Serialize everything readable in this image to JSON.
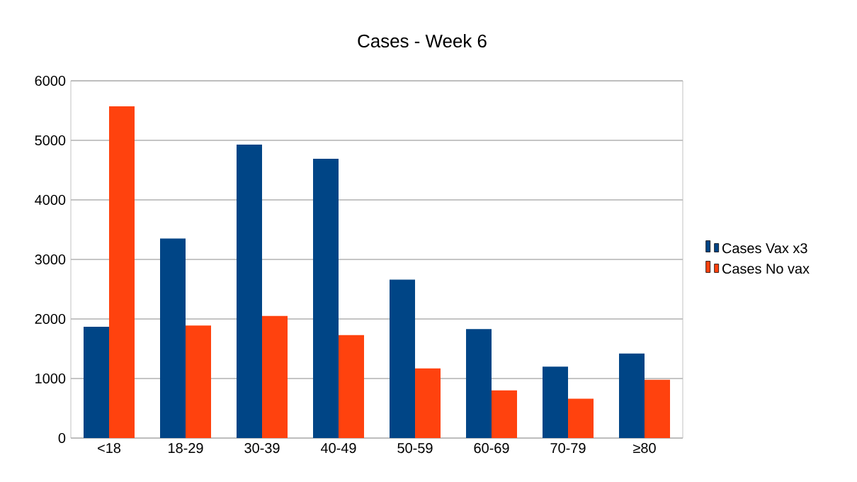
{
  "chart_data": {
    "type": "bar",
    "title": "Cases - Week 6",
    "categories": [
      "<18",
      "18-29",
      "30-39",
      "40-49",
      "50-59",
      "60-69",
      "70-79",
      "≥80"
    ],
    "series": [
      {
        "name": "Cases Vax x3",
        "color": "#004586",
        "values": [
          1870,
          3350,
          4930,
          4690,
          2660,
          1830,
          1200,
          1420
        ]
      },
      {
        "name": "Cases No vax",
        "color": "#ff420e",
        "values": [
          5570,
          1890,
          2050,
          1730,
          1170,
          800,
          660,
          980
        ]
      }
    ],
    "ylim": [
      0,
      6000
    ],
    "yticks": [
      0,
      1000,
      2000,
      3000,
      4000,
      5000,
      6000
    ],
    "grid": "y",
    "legend": "right"
  }
}
